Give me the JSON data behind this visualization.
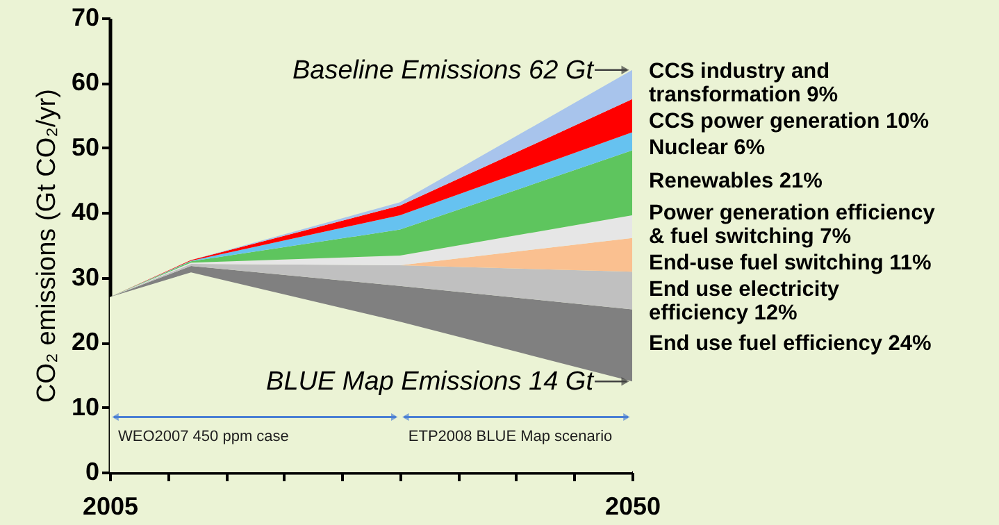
{
  "chart_data": {
    "type": "area",
    "stacked": true,
    "ylabel": "CO₂ emissions (Gt CO₂/yr)",
    "x": [
      2005,
      2012,
      2030,
      2050
    ],
    "xlim": [
      2005,
      2050
    ],
    "xticks": [
      2005,
      {
        "value": 2010,
        "label": null
      },
      {
        "value": 2015,
        "label": null
      },
      {
        "value": 2020,
        "label": null
      },
      {
        "value": 2025,
        "label": null
      },
      {
        "value": 2030,
        "label": null
      },
      {
        "value": 2035,
        "label": null
      },
      {
        "value": 2040,
        "label": null
      },
      {
        "value": 2045,
        "label": null
      },
      2050
    ],
    "ylim": [
      0,
      70
    ],
    "yticks": [
      0,
      10,
      20,
      30,
      40,
      50,
      60,
      70
    ],
    "grid": false,
    "series": [
      {
        "color": "#ebf3d5",
        "values": [
          27,
          30.8,
          23.2,
          14
        ]
      },
      {
        "name": "End use fuel efficiency 24%",
        "color": "#808080",
        "values": [
          0,
          1.0,
          5.5,
          11.1
        ]
      },
      {
        "name": "End use electricity efficiency 12%",
        "color": "#c0c0c0",
        "values": [
          0,
          0.3,
          3.2,
          5.8
        ]
      },
      {
        "name": "End-use fuel switching 11%",
        "color": "#fac090",
        "values": [
          0,
          0,
          0,
          5.2
        ]
      },
      {
        "name": "Power generation efficiency & fuel switching 7%",
        "color": "#e6e6e6",
        "values": [
          0,
          0.2,
          1.5,
          3.5
        ]
      },
      {
        "name": "Renewables 21%",
        "color": "#5ec55e",
        "values": [
          0,
          0.2,
          4.0,
          10.0
        ]
      },
      {
        "name": "Nuclear 6%",
        "color": "#66c2f0",
        "values": [
          0,
          0.1,
          2.2,
          2.8
        ]
      },
      {
        "name": "CCS power generation 10%",
        "color": "#ff0000",
        "values": [
          0,
          0.1,
          1.5,
          5.1
        ]
      },
      {
        "name": "CCS industry and transformation 9%",
        "color": "#a8c4ec",
        "values": [
          0,
          0,
          0.5,
          4.5
        ]
      }
    ],
    "annotations": [
      {
        "text": "Baseline Emissions 62 Gt",
        "x": 2050,
        "y": 62
      },
      {
        "text": "BLUE Map Emissions 14 Gt",
        "x": 2050,
        "y": 14
      },
      "WEO2007 450 ppm case",
      "ETP2008 BLUE Map scenario"
    ]
  }
}
